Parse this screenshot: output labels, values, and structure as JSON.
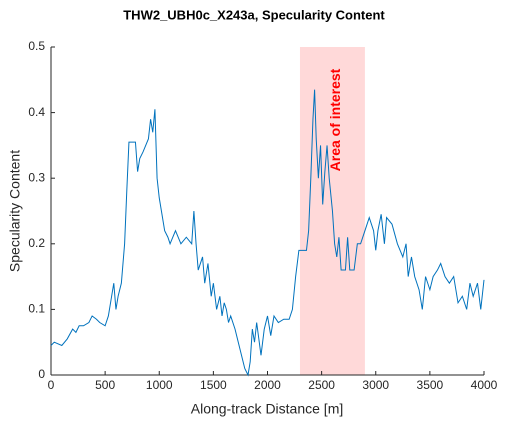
{
  "chart_data": {
    "type": "line",
    "title": "THW2_UBH0c_X243a, Specularity Content",
    "xlabel": "Along-track Distance [m]",
    "ylabel": "Specularity Content",
    "annotation": "Area of interest",
    "highlight_region": [
      2300,
      2900
    ],
    "highlight_color": "#ffd9d9",
    "annotation_color": "#ff0000",
    "xlim": [
      0,
      4000
    ],
    "ylim": [
      0,
      0.5
    ],
    "xticks": [
      0,
      500,
      1000,
      1500,
      2000,
      2500,
      3000,
      3500,
      4000
    ],
    "yticks": [
      0,
      0.1,
      0.2,
      0.3,
      0.4,
      0.5
    ],
    "series": [
      {
        "color": "#0072bd",
        "x": [
          0,
          30,
          100,
          150,
          200,
          230,
          260,
          300,
          350,
          380,
          420,
          450,
          500,
          530,
          560,
          580,
          600,
          620,
          650,
          680,
          700,
          720,
          780,
          800,
          820,
          850,
          900,
          920,
          940,
          960,
          980,
          1000,
          1020,
          1050,
          1080,
          1100,
          1150,
          1200,
          1250,
          1300,
          1320,
          1340,
          1360,
          1400,
          1420,
          1450,
          1480,
          1500,
          1530,
          1560,
          1580,
          1600,
          1620,
          1640,
          1660,
          1700,
          1730,
          1760,
          1790,
          1820,
          1840,
          1860,
          1880,
          1900,
          1940,
          1970,
          2000,
          2030,
          2060,
          2100,
          2150,
          2200,
          2230,
          2260,
          2290,
          2330,
          2360,
          2380,
          2400,
          2420,
          2435,
          2450,
          2470,
          2490,
          2510,
          2530,
          2550,
          2570,
          2600,
          2620,
          2640,
          2660,
          2680,
          2720,
          2740,
          2760,
          2800,
          2830,
          2860,
          2900,
          2940,
          2980,
          3000,
          3020,
          3050,
          3080,
          3100,
          3150,
          3200,
          3250,
          3280,
          3300,
          3330,
          3360,
          3400,
          3430,
          3460,
          3500,
          3530,
          3570,
          3600,
          3640,
          3680,
          3720,
          3760,
          3800,
          3840,
          3870,
          3900,
          3940,
          3970,
          4000
        ],
        "values": [
          0.045,
          0.05,
          0.045,
          0.055,
          0.07,
          0.065,
          0.075,
          0.075,
          0.08,
          0.09,
          0.085,
          0.08,
          0.075,
          0.09,
          0.12,
          0.14,
          0.1,
          0.12,
          0.14,
          0.2,
          0.28,
          0.355,
          0.355,
          0.31,
          0.33,
          0.34,
          0.36,
          0.39,
          0.37,
          0.405,
          0.3,
          0.27,
          0.25,
          0.22,
          0.21,
          0.2,
          0.22,
          0.2,
          0.21,
          0.2,
          0.25,
          0.2,
          0.16,
          0.18,
          0.14,
          0.17,
          0.12,
          0.14,
          0.1,
          0.12,
          0.09,
          0.11,
          0.1,
          0.08,
          0.09,
          0.07,
          0.05,
          0.03,
          0.01,
          0,
          0.02,
          0.07,
          0.05,
          0.08,
          0.03,
          0.07,
          0.09,
          0.06,
          0.09,
          0.08,
          0.085,
          0.085,
          0.1,
          0.15,
          0.19,
          0.19,
          0.19,
          0.22,
          0.3,
          0.39,
          0.435,
          0.36,
          0.3,
          0.35,
          0.26,
          0.31,
          0.35,
          0.3,
          0.25,
          0.2,
          0.18,
          0.21,
          0.16,
          0.16,
          0.21,
          0.16,
          0.16,
          0.2,
          0.2,
          0.22,
          0.24,
          0.22,
          0.19,
          0.22,
          0.245,
          0.2,
          0.24,
          0.23,
          0.2,
          0.18,
          0.2,
          0.15,
          0.18,
          0.15,
          0.13,
          0.1,
          0.15,
          0.13,
          0.15,
          0.16,
          0.17,
          0.15,
          0.14,
          0.15,
          0.11,
          0.12,
          0.1,
          0.14,
          0.12,
          0.14,
          0.1,
          0.145
        ]
      }
    ]
  }
}
